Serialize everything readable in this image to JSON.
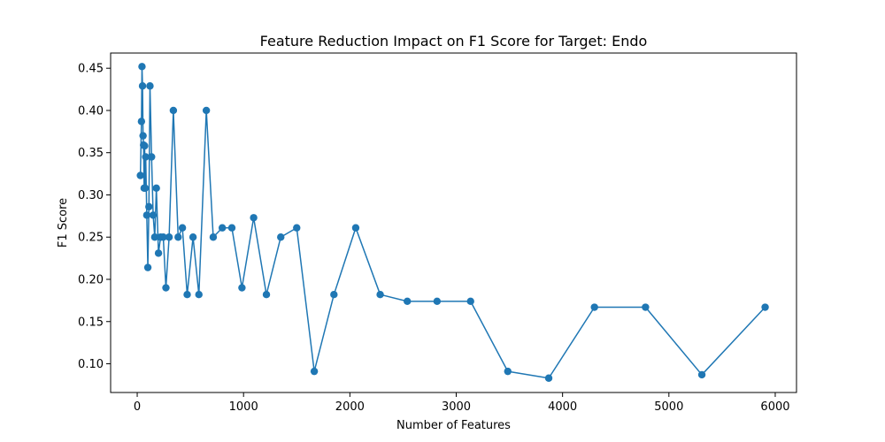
{
  "chart_data": {
    "type": "line",
    "title": "Feature Reduction Impact on F1 Score for Target: Endo",
    "xlabel": "Number of Features",
    "ylabel": "F1 Score",
    "xlim": [
      -250,
      6200
    ],
    "ylim": [
      0.066,
      0.468
    ],
    "xticks": [
      0,
      1000,
      2000,
      3000,
      4000,
      5000,
      6000
    ],
    "xtick_labels": [
      "0",
      "1000",
      "2000",
      "3000",
      "4000",
      "5000",
      "6000"
    ],
    "yticks": [
      0.1,
      0.15,
      0.2,
      0.25,
      0.3,
      0.35,
      0.4,
      0.45
    ],
    "ytick_labels": [
      "0.10",
      "0.15",
      "0.20",
      "0.25",
      "0.30",
      "0.35",
      "0.40",
      "0.45"
    ],
    "grid": false,
    "color": "#1f77b4",
    "marker": "circle",
    "series": [
      {
        "x": [
          30,
          40,
          45,
          50,
          55,
          60,
          65,
          70,
          75,
          80,
          90,
          100,
          110,
          120,
          135,
          150,
          165,
          180,
          200,
          220,
          245,
          270,
          300,
          340,
          385,
          425,
          470,
          525,
          580,
          650,
          715,
          800,
          890,
          985,
          1095,
          1215,
          1350,
          1500,
          1665,
          1850,
          2055,
          2285,
          2540,
          2820,
          3135,
          3485,
          3870,
          4300,
          4780,
          5310,
          5905
        ],
        "y": [
          0.323,
          0.387,
          0.452,
          0.429,
          0.37,
          0.359,
          0.308,
          0.358,
          0.308,
          0.345,
          0.276,
          0.214,
          0.286,
          0.429,
          0.345,
          0.276,
          0.25,
          0.308,
          0.231,
          0.25,
          0.25,
          0.19,
          0.25,
          0.4,
          0.25,
          0.261,
          0.182,
          0.25,
          0.182,
          0.4,
          0.25,
          0.261,
          0.261,
          0.19,
          0.273,
          0.182,
          0.25,
          0.261,
          0.091,
          0.182,
          0.261,
          0.182,
          0.174,
          0.174,
          0.174,
          0.091,
          0.083,
          0.167,
          0.167,
          0.087,
          0.167
        ]
      }
    ]
  }
}
